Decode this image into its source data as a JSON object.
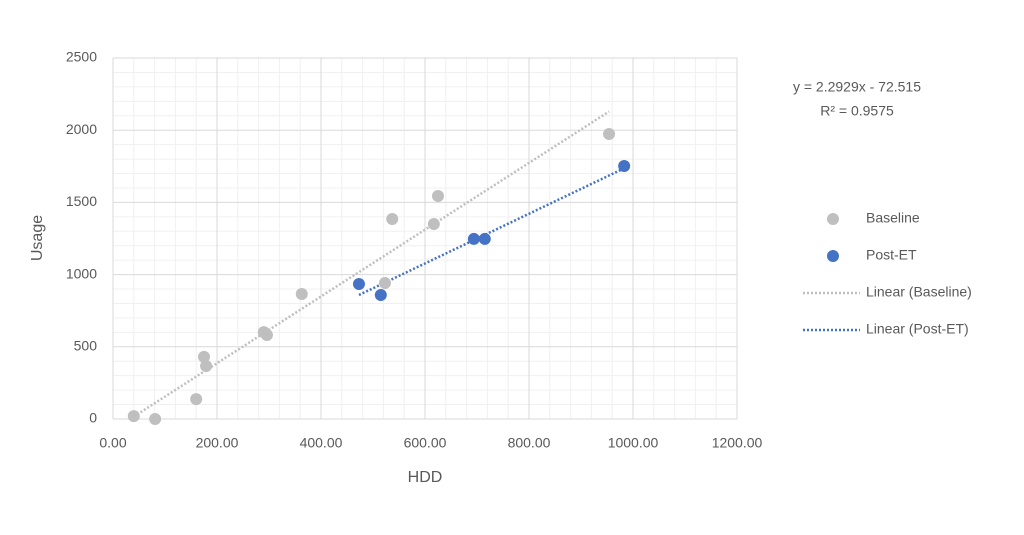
{
  "chart_data": {
    "type": "scatter",
    "x_label": "HDD",
    "y_label": "Usage",
    "xlim": [
      0,
      1200
    ],
    "xticks": [
      {
        "value": 0,
        "label": "0.00"
      },
      {
        "value": 200,
        "label": "200.00"
      },
      {
        "value": 400,
        "label": "400.00"
      },
      {
        "value": 600,
        "label": "600.00"
      },
      {
        "value": 800,
        "label": "800.00"
      },
      {
        "value": 1000,
        "label": "1000.00"
      },
      {
        "value": 1200,
        "label": "1200.00"
      }
    ],
    "ylim": [
      0,
      2500
    ],
    "yticks": [
      0,
      500,
      1000,
      1500,
      2000,
      2500
    ],
    "grid": true,
    "minor_grid": true,
    "legend": "right",
    "series": [
      {
        "name": "Baseline",
        "color": "#bfbfbf",
        "trendline_name": "Linear (Baseline)",
        "trendline_color": "#bfbfbf",
        "x": [
          40,
          81,
          160,
          175,
          179,
          290,
          296,
          363,
          523,
          537,
          617,
          625,
          954
        ],
        "values": [
          20,
          0,
          138,
          430,
          367,
          602,
          582,
          866,
          942,
          1385,
          1350,
          1544,
          1974
        ]
      },
      {
        "name": "Post-ET",
        "color": "#4472c4",
        "trendline_name": "Linear (Post-ET)",
        "trendline_color": "#4472c4",
        "x": [
          473,
          515,
          694,
          715,
          983
        ],
        "values": [
          935,
          859,
          1247,
          1247,
          1752
        ]
      }
    ],
    "annotations": [
      "y = 2.2929x - 72.515",
      "R² = 0.9575"
    ]
  }
}
